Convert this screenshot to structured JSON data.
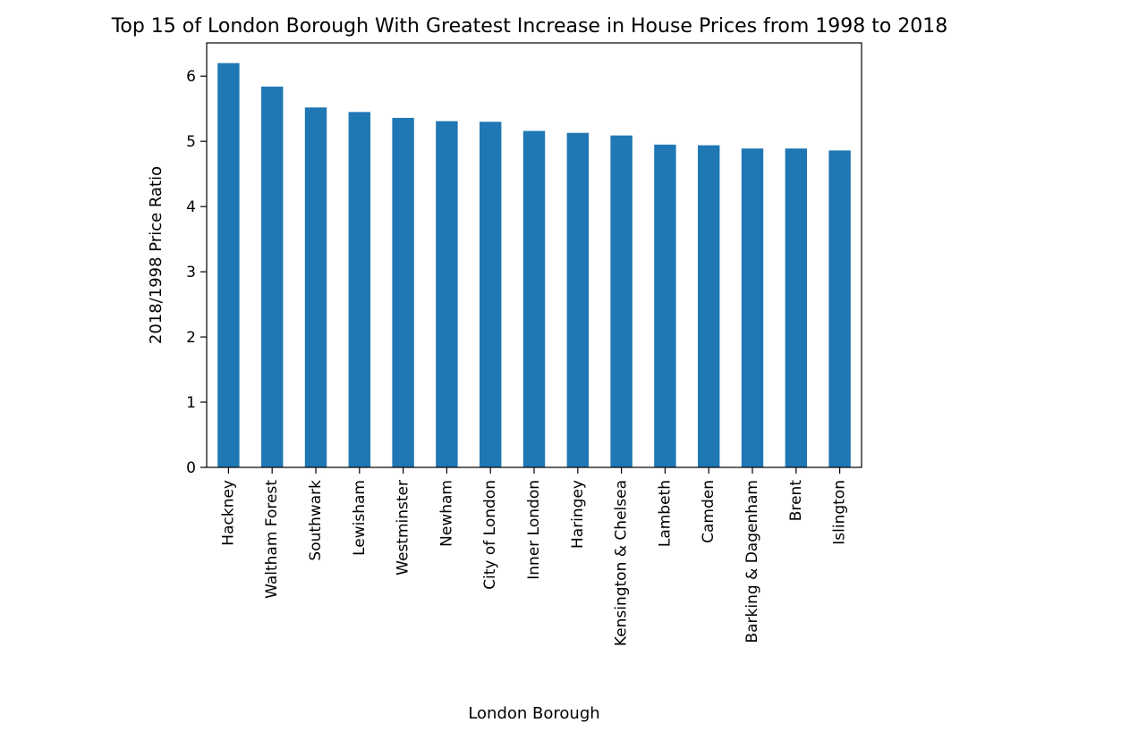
{
  "chart_data": {
    "type": "bar",
    "title": "Top 15 of London Borough With Greatest Increase in House Prices from 1998 to 2018",
    "xlabel": "London Borough",
    "ylabel": "2018/1998 Price Ratio",
    "categories": [
      "Hackney",
      "Waltham Forest",
      "Southwark",
      "Lewisham",
      "Westminster",
      "Newham",
      "City of London",
      "Inner London",
      "Haringey",
      "Kensington & Chelsea",
      "Lambeth",
      "Camden",
      "Barking & Dagenham",
      "Brent",
      "Islington"
    ],
    "values": [
      6.2,
      5.84,
      5.52,
      5.45,
      5.36,
      5.31,
      5.3,
      5.16,
      5.13,
      5.09,
      4.95,
      4.94,
      4.89,
      4.89,
      4.86
    ],
    "yticks": [
      "0",
      "1",
      "2",
      "3",
      "4",
      "5",
      "6"
    ],
    "ylim": [
      0,
      6.51
    ],
    "grid": false,
    "legend": "none",
    "bar_color": "#1f77b4"
  }
}
